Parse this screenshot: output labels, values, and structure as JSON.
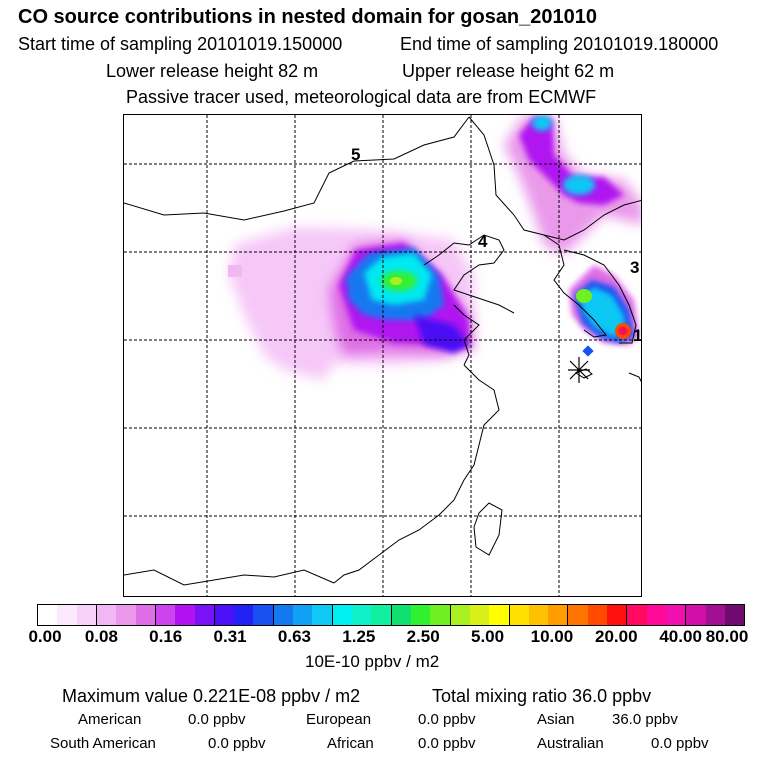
{
  "chart_data": {
    "type": "heatmap",
    "title": "CO  source contributions in nested domain for gosan_201010",
    "subtitle_lines": [
      {
        "left": "Start time of sampling 20101019.150000",
        "right": "End time of sampling 20101019.180000"
      },
      {
        "left": "Lower release height   82 m",
        "right": "Upper release height   62 m"
      },
      {
        "single": "Passive tracer used, meteorological data are from ECMWF"
      }
    ],
    "grid_labels": [
      "5",
      "4",
      "3",
      "1"
    ],
    "colorbar": {
      "ticks": [
        "0.00",
        "0.08",
        "0.16",
        "0.31",
        "0.63",
        "1.25",
        "2.50",
        "5.00",
        "10.00",
        "20.00",
        "40.00",
        "80.00"
      ],
      "unit": "10E-10 ppbv / m2",
      "colors": [
        "#ffffff",
        "#fde8fd",
        "#f8d0f8",
        "#f2b6f2",
        "#ea98ea",
        "#de6ee6",
        "#cc44ee",
        "#b012f0",
        "#7a12f6",
        "#4c10f6",
        "#2222f4",
        "#1a50f0",
        "#1478f0",
        "#10a0f4",
        "#10c8f4",
        "#00f0f0",
        "#10f0c8",
        "#10f0a0",
        "#10e070",
        "#30f030",
        "#70f020",
        "#a8f020",
        "#d8f018",
        "#ffff00",
        "#ffe000",
        "#ffc000",
        "#ff9c00",
        "#ff7400",
        "#ff4a00",
        "#ff1010",
        "#ff0a60",
        "#ff0a98",
        "#f010b0",
        "#d010a8",
        "#a01090",
        "#700a70"
      ]
    },
    "max_value_label": "Maximum value  0.221E-08 ppbv / m2",
    "total_mixing_label": "Total mixing ratio      36.0 ppbv",
    "contributions": [
      {
        "name": "American",
        "value": "0.0 ppbv"
      },
      {
        "name": "European",
        "value": "0.0 ppbv"
      },
      {
        "name": "Asian",
        "value": "36.0 ppbv"
      },
      {
        "name": "South American",
        "value": "0.0 ppbv"
      },
      {
        "name": "African",
        "value": "0.0 ppbv"
      },
      {
        "name": "Australian",
        "value": "0.0 ppbv"
      }
    ],
    "plumes": [
      {
        "id": "north-china-plume",
        "peak_category": "1.25-2.50"
      },
      {
        "id": "korea-plume",
        "peak_category": "20.00-40.00"
      },
      {
        "id": "northeast-plume",
        "peak_category": "0.63-1.25"
      }
    ]
  }
}
